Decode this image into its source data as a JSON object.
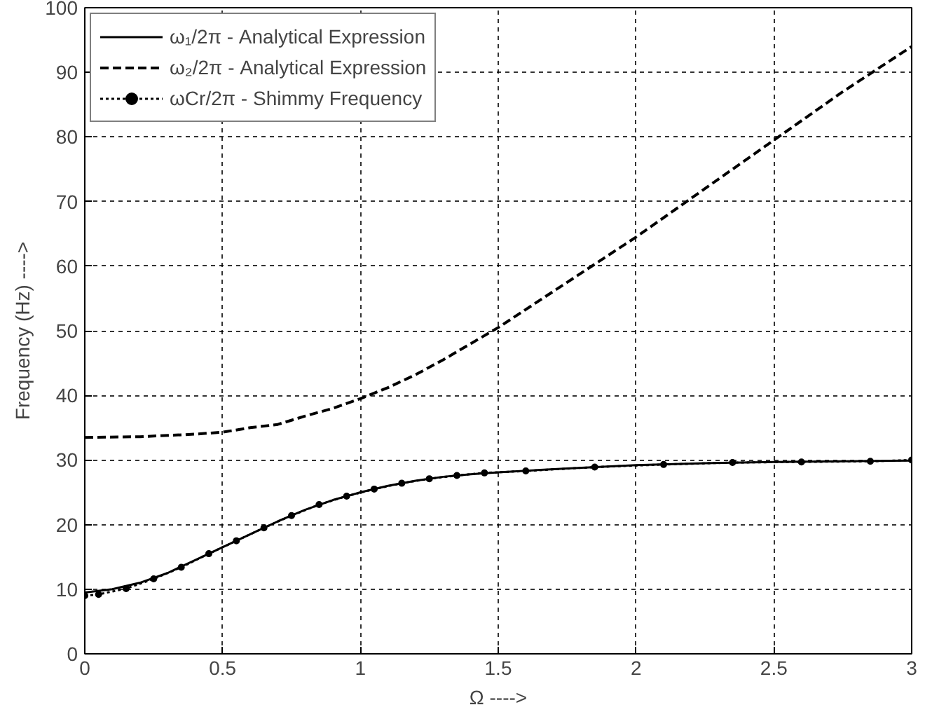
{
  "chart_data": {
    "type": "line",
    "xlabel": "Ω ---->",
    "ylabel": "Frequency (Hz) ---->",
    "xlim": [
      0,
      3
    ],
    "ylim": [
      0,
      100
    ],
    "xticks": [
      0,
      0.5,
      1,
      1.5,
      2,
      2.5,
      3
    ],
    "yticks": [
      0,
      10,
      20,
      30,
      40,
      50,
      60,
      70,
      80,
      90,
      100
    ],
    "grid": true,
    "legend": "top left",
    "series": [
      {
        "name": "ω₁/2π - Analytical Expression",
        "color": "#000000",
        "line_style": "solid",
        "marker": "none",
        "x": [
          0,
          0.1,
          0.2,
          0.3,
          0.4,
          0.5,
          0.6,
          0.7,
          0.8,
          0.9,
          1.0,
          1.1,
          1.2,
          1.3,
          1.4,
          1.5,
          1.75,
          2.0,
          2.25,
          2.5,
          2.75,
          3.0
        ],
        "values": [
          9.5,
          10,
          11,
          12.5,
          14.5,
          16.5,
          18.5,
          20.5,
          22.3,
          23.8,
          25,
          26,
          26.8,
          27.4,
          27.8,
          28.1,
          28.7,
          29.2,
          29.5,
          29.7,
          29.8,
          29.9
        ]
      },
      {
        "name": "ω₂/2π - Analytical Expression",
        "color": "#000000",
        "line_style": "dashed",
        "marker": "none",
        "x": [
          0,
          0.2,
          0.4,
          0.5,
          0.6,
          0.7,
          0.8,
          0.9,
          1.0,
          1.1,
          1.2,
          1.3,
          1.4,
          1.5,
          1.75,
          2.0,
          2.25,
          2.5,
          2.75,
          3.0
        ],
        "values": [
          33.5,
          33.6,
          34,
          34.3,
          35,
          35.5,
          36.8,
          38,
          39.5,
          41.2,
          43.2,
          45.5,
          48,
          50.5,
          57.5,
          64.5,
          72,
          79.5,
          87,
          94
        ]
      },
      {
        "name": "ωCr/2π - Shimmy Frequency",
        "color": "#000000",
        "line_style": "dotted",
        "marker": "circle",
        "x": [
          0,
          0.05,
          0.15,
          0.25,
          0.35,
          0.45,
          0.55,
          0.65,
          0.75,
          0.85,
          0.95,
          1.05,
          1.15,
          1.25,
          1.35,
          1.45,
          1.6,
          1.85,
          2.1,
          2.35,
          2.6,
          2.85,
          3.0
        ],
        "values": [
          9,
          9.2,
          10.1,
          11.6,
          13.4,
          15.5,
          17.5,
          19.5,
          21.4,
          23.1,
          24.4,
          25.5,
          26.4,
          27.1,
          27.6,
          28,
          28.3,
          28.9,
          29.3,
          29.6,
          29.7,
          29.8,
          30
        ]
      }
    ]
  }
}
